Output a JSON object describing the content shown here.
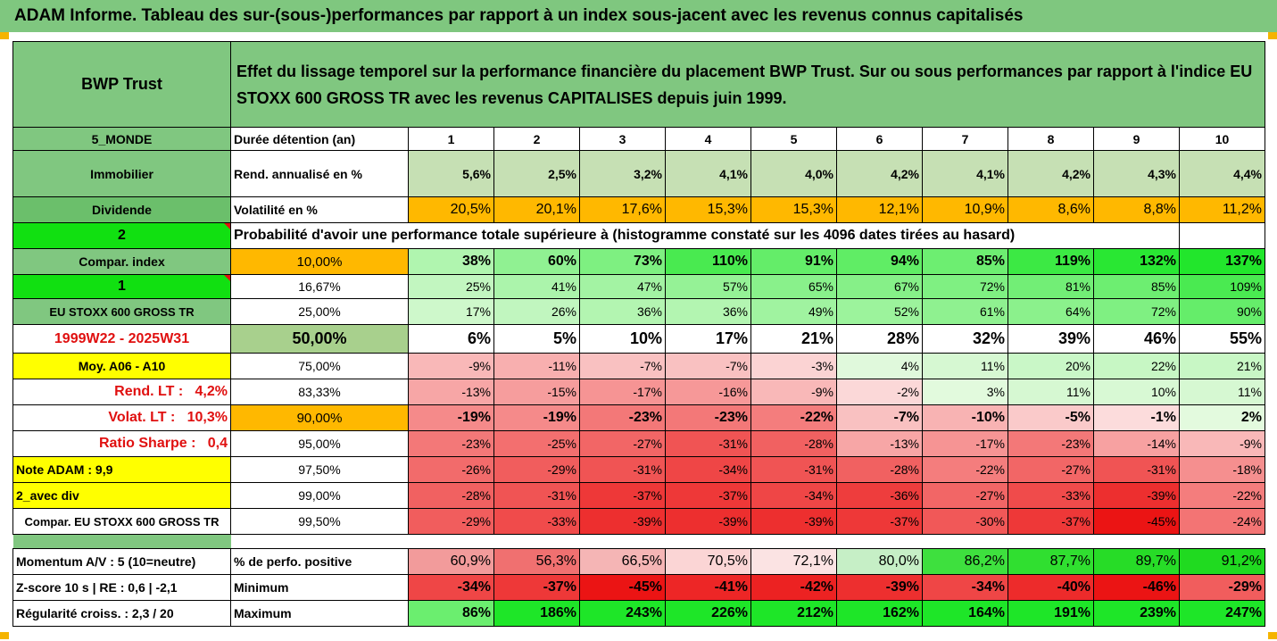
{
  "title": "ADAM Informe. Tableau des sur-(sous-)performances par rapport à un index sous-jacent avec les revenus connus capitalisés",
  "fund": "BWP Trust",
  "description": "Effet du lissage temporel sur la performance financière du placement BWP Trust. Sur ou sous performances par rapport à l'indice EU STOXX 600 GROSS TR avec les revenus CAPITALISES depuis juin 1999.",
  "horizon_label": "Durée détention (an)",
  "horizons": [
    "1",
    "2",
    "3",
    "4",
    "5",
    "6",
    "7",
    "8",
    "9",
    "10"
  ],
  "left": {
    "zone": "5_MONDE",
    "sector": "Immobilier",
    "type": "Dividende",
    "sel1": "2",
    "compar": "Compar. index",
    "sel2": "1",
    "index": "EU STOXX 600 GROSS TR",
    "period": "1999W22 - 2025W31",
    "moy": "Moy. A06 - A10",
    "rend_lt_label": "Rend. LT :",
    "rend_lt_value": "4,2%",
    "volat_lt_label": "Volat. LT :",
    "volat_lt_value": "10,3%",
    "sharpe_label": "Ratio Sharpe :",
    "sharpe_value": "0,4",
    "note": "Note ADAM : 9,9",
    "avec_div": "2_avec div",
    "compar_index": "Compar. EU STOXX 600 GROSS TR"
  },
  "rend_label": "Rend. annualisé en %",
  "rend": [
    "5,6%",
    "2,5%",
    "3,2%",
    "4,1%",
    "4,0%",
    "4,2%",
    "4,1%",
    "4,2%",
    "4,3%",
    "4,4%"
  ],
  "vol_label": "Volatilité en %",
  "vol": [
    "20,5%",
    "20,1%",
    "17,6%",
    "15,3%",
    "15,3%",
    "12,1%",
    "10,9%",
    "8,6%",
    "8,8%",
    "11,2%"
  ],
  "prob_label": "Probabilité d'avoir une performance totale supérieure à (histogramme constaté sur les 4096 dates tirées au hasard)",
  "quantiles": [
    {
      "p": "10,00%",
      "v": [
        "38%",
        "60%",
        "73%",
        "110%",
        "91%",
        "94%",
        "85%",
        "119%",
        "132%",
        "137%"
      ]
    },
    {
      "p": "16,67%",
      "v": [
        "25%",
        "41%",
        "47%",
        "57%",
        "65%",
        "67%",
        "72%",
        "81%",
        "85%",
        "109%"
      ]
    },
    {
      "p": "25,00%",
      "v": [
        "17%",
        "26%",
        "36%",
        "36%",
        "49%",
        "52%",
        "61%",
        "64%",
        "72%",
        "90%"
      ]
    },
    {
      "p": "50,00%",
      "v": [
        "6%",
        "5%",
        "10%",
        "17%",
        "21%",
        "28%",
        "32%",
        "39%",
        "46%",
        "55%"
      ]
    },
    {
      "p": "75,00%",
      "v": [
        "-9%",
        "-11%",
        "-7%",
        "-7%",
        "-3%",
        "4%",
        "11%",
        "20%",
        "22%",
        "21%"
      ]
    },
    {
      "p": "83,33%",
      "v": [
        "-13%",
        "-15%",
        "-17%",
        "-16%",
        "-9%",
        "-2%",
        "3%",
        "11%",
        "10%",
        "11%"
      ]
    },
    {
      "p": "90,00%",
      "v": [
        "-19%",
        "-19%",
        "-23%",
        "-23%",
        "-22%",
        "-7%",
        "-10%",
        "-5%",
        "-1%",
        "2%"
      ]
    },
    {
      "p": "95,00%",
      "v": [
        "-23%",
        "-25%",
        "-27%",
        "-31%",
        "-28%",
        "-13%",
        "-17%",
        "-23%",
        "-14%",
        "-9%"
      ]
    },
    {
      "p": "97,50%",
      "v": [
        "-26%",
        "-29%",
        "-31%",
        "-34%",
        "-31%",
        "-28%",
        "-22%",
        "-27%",
        "-31%",
        "-18%"
      ]
    },
    {
      "p": "99,00%",
      "v": [
        "-28%",
        "-31%",
        "-37%",
        "-37%",
        "-34%",
        "-36%",
        "-27%",
        "-33%",
        "-39%",
        "-22%"
      ]
    },
    {
      "p": "99,50%",
      "v": [
        "-29%",
        "-33%",
        "-39%",
        "-39%",
        "-39%",
        "-37%",
        "-30%",
        "-37%",
        "-45%",
        "-24%"
      ]
    }
  ],
  "bottom": {
    "momentum": "Momentum A/V : 5 (10=neutre)",
    "zscore": "Z-score 10 s  | RE : 0,6 | -2,1",
    "regularite": "Régularité croiss. : 2,3 / 20",
    "pos_label": "% de perfo. positive",
    "pos": [
      "60,9%",
      "56,3%",
      "66,5%",
      "70,5%",
      "72,1%",
      "80,0%",
      "86,2%",
      "87,7%",
      "89,7%",
      "91,2%"
    ],
    "min_label": "Minimum",
    "min": [
      "-34%",
      "-37%",
      "-45%",
      "-41%",
      "-42%",
      "-39%",
      "-34%",
      "-40%",
      "-46%",
      "-29%"
    ],
    "max_label": "Maximum",
    "max": [
      "86%",
      "186%",
      "243%",
      "226%",
      "212%",
      "162%",
      "164%",
      "191%",
      "239%",
      "247%"
    ]
  },
  "colors": {
    "header_green": "#80c780",
    "lime": "#11e011",
    "yellow": "#ffff00",
    "orange": "#ffb800",
    "red_text": "#e01010"
  }
}
